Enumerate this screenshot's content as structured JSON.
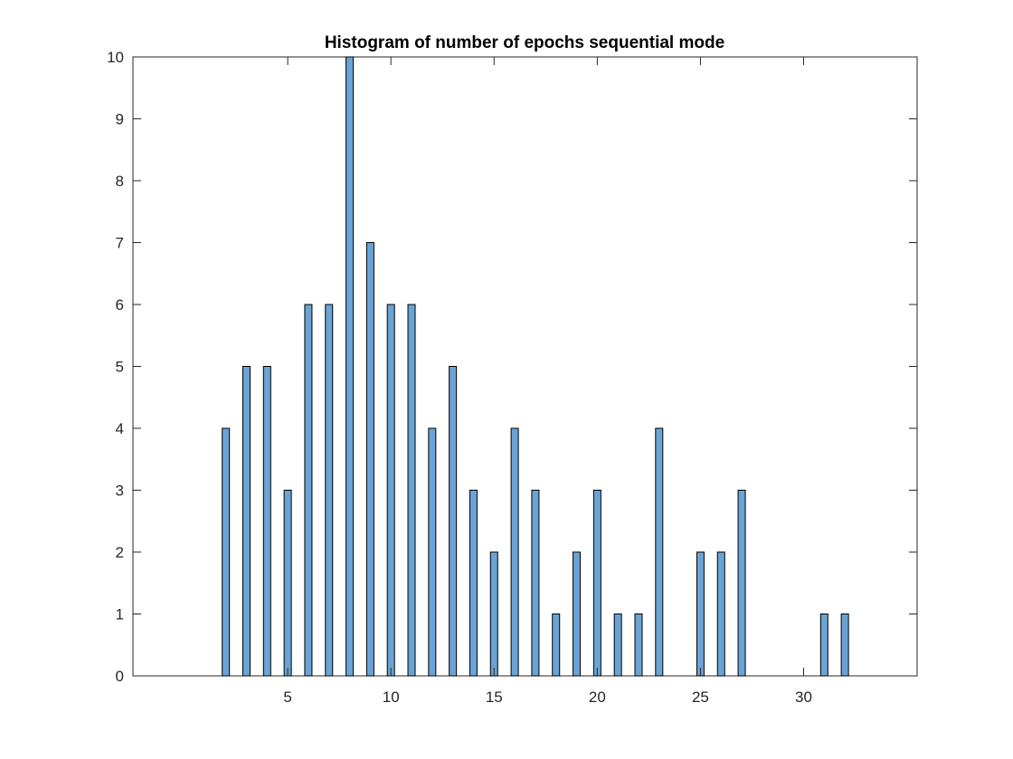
{
  "chart_data": {
    "type": "bar",
    "title": "Histogram of number of epochs sequential mode",
    "xlabel": "",
    "ylabel": "",
    "x": [
      2,
      3,
      4,
      5,
      6,
      7,
      8,
      9,
      10,
      11,
      12,
      13,
      14,
      15,
      16,
      17,
      18,
      19,
      20,
      21,
      22,
      23,
      24,
      25,
      26,
      27,
      28,
      29,
      30,
      31,
      32
    ],
    "values": [
      4,
      5,
      5,
      3,
      6,
      6,
      10,
      7,
      6,
      6,
      4,
      5,
      3,
      2,
      4,
      3,
      1,
      2,
      3,
      1,
      1,
      4,
      0,
      2,
      2,
      3,
      0,
      0,
      0,
      1,
      1
    ],
    "xlim": [
      -2.5,
      35.5
    ],
    "ylim": [
      0,
      10
    ],
    "xticks": [
      5,
      10,
      15,
      20,
      25,
      30
    ],
    "yticks": [
      0,
      1,
      2,
      3,
      4,
      5,
      6,
      7,
      8,
      9,
      10
    ],
    "grid": false,
    "legend": "none",
    "colors": {
      "bar_fill": "#6aa3d5",
      "bar_edge": "#000000",
      "axis": "#262626",
      "background": "#ffffff"
    }
  }
}
